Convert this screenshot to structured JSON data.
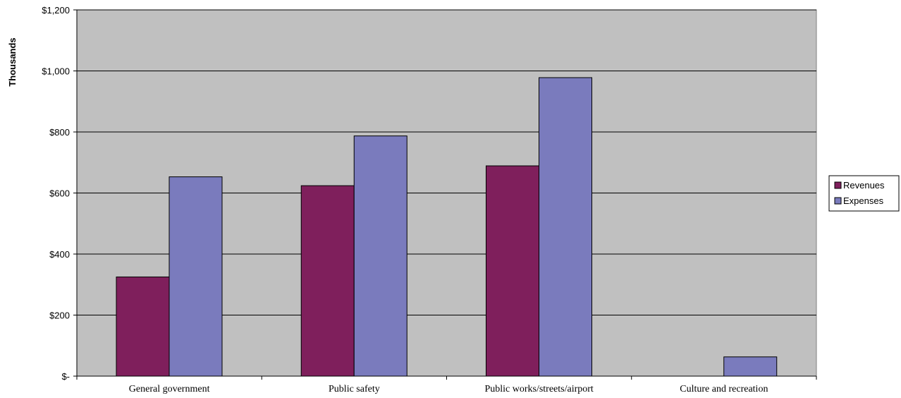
{
  "chart_data": {
    "type": "bar",
    "title": "",
    "xlabel": "",
    "ylabel": "Thousands",
    "ylim": [
      0,
      1200
    ],
    "yticks": [
      0,
      200,
      400,
      600,
      800,
      1000,
      1200
    ],
    "ytick_labels": [
      "$-",
      "$200",
      "$400",
      "$600",
      "$800",
      "$1,000",
      "$1,200"
    ],
    "categories": [
      "General government",
      "Public safety",
      "Public works/streets/airport",
      "Culture and recreation"
    ],
    "series": [
      {
        "name": "Revenues",
        "color": "#7f1f5c",
        "values": [
          325,
          624,
          689,
          0
        ]
      },
      {
        "name": "Expenses",
        "color": "#7a7bbd",
        "values": [
          653,
          787,
          978,
          63
        ]
      }
    ],
    "grid": true,
    "legend_position": "right",
    "plot_background": "#c0c0c0"
  }
}
